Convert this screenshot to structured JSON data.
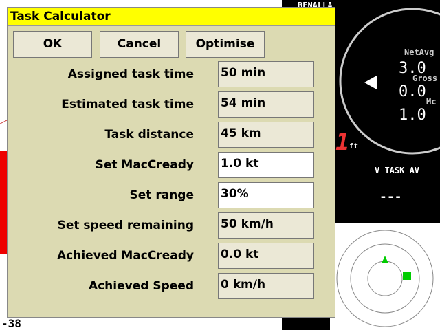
{
  "dialog": {
    "title": "Task Calculator",
    "buttons": [
      "OK",
      "Cancel",
      "Optimise"
    ],
    "rows": [
      {
        "label": "Assigned task time",
        "value": "50 min",
        "editable": false
      },
      {
        "label": "Estimated task time",
        "value": "54 min",
        "editable": false
      },
      {
        "label": "Task distance",
        "value": "45 km",
        "editable": false
      },
      {
        "label": "Set MacCready",
        "value": "1.0 kt",
        "editable": true
      },
      {
        "label": "Set range",
        "value": "30%",
        "editable": true
      },
      {
        "label": "Set speed remaining",
        "value": "50 km/h",
        "editable": false
      },
      {
        "label": "Achieved MacCready",
        "value": "0.0 kt",
        "editable": false
      },
      {
        "label": "Achieved Speed",
        "value": "0 km/h",
        "editable": false
      }
    ]
  },
  "instruments": {
    "waypoint": "BENALLA",
    "net_avg_label": "NetAvg",
    "net_avg": "3.0",
    "gross_label": "Gross",
    "gross": "0.0",
    "mc_label": "Mc",
    "mc": "1.0",
    "speed_label": "V TASK AV",
    "speed": "---",
    "altitude": "-38",
    "height": "1",
    "height_unit": "ft"
  }
}
